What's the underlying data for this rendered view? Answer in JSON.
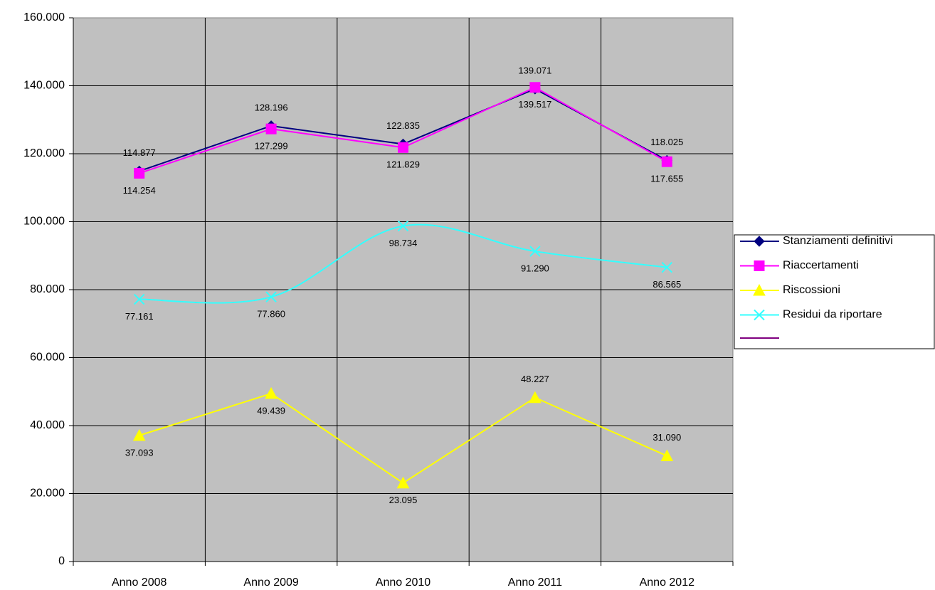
{
  "chart_data": {
    "type": "line",
    "categories": [
      "Anno 2008",
      "Anno 2009",
      "Anno 2010",
      "Anno 2011",
      "Anno 2012"
    ],
    "series": [
      {
        "name": "Stanziamenti definitivi",
        "color": "#000080",
        "marker": "diamond",
        "values": [
          114877,
          128196,
          122835,
          139071,
          118025
        ],
        "value_labels": [
          "114.877",
          "128.196",
          "122.835",
          "139.071",
          "118.025"
        ]
      },
      {
        "name": "Riaccertamenti",
        "color": "#ff00ff",
        "marker": "square",
        "values": [
          114254,
          127299,
          121829,
          139517,
          117655
        ],
        "value_labels": [
          "114.254",
          "127.299",
          "121.829",
          "139.517",
          "117.655"
        ]
      },
      {
        "name": "Riscossioni",
        "color": "#ffff00",
        "marker": "triangle",
        "values": [
          37093,
          49439,
          23095,
          48227,
          31090
        ],
        "value_labels": [
          "37.093",
          "49.439",
          "23.095",
          "48.227",
          "31.090"
        ]
      },
      {
        "name": "Residui da riportare",
        "color": "#33ffff",
        "marker": "x",
        "smooth": true,
        "values": [
          77161,
          77860,
          98734,
          91290,
          86565
        ],
        "value_labels": [
          "77.161",
          "77.860",
          "98.734",
          "91.290",
          "86.565"
        ]
      }
    ],
    "ylim": [
      0,
      160000
    ],
    "yticks": [
      0,
      {
        "value": 20000,
        "label": "20.000"
      },
      {
        "value": 40000,
        "label": "40.000"
      },
      {
        "value": 60000,
        "label": "60.000"
      },
      {
        "value": 80000,
        "label": "80.000"
      },
      {
        "value": 100000,
        "label": "100.000"
      },
      {
        "value": 120000,
        "label": "120.000"
      },
      {
        "value": 140000,
        "label": "140.000"
      },
      {
        "value": 160000,
        "label": "160.000"
      }
    ],
    "grid": true,
    "legend": "right"
  }
}
